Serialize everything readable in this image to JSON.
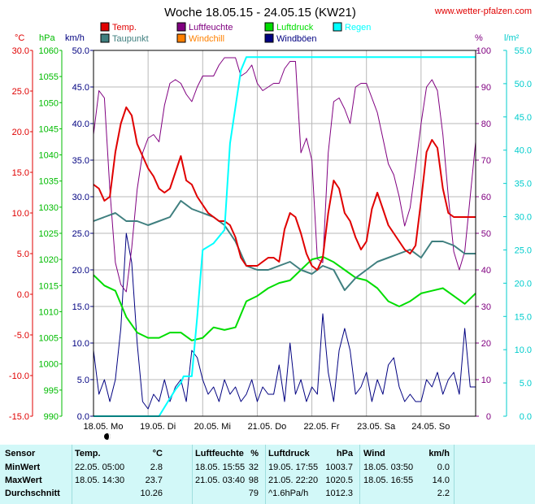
{
  "title": "Woche 18.05.15 - 24.05.15 (KW21)",
  "site": "www.wetter-pfalzen.com",
  "colors": {
    "background": "#ffffff",
    "plot_background": "#ffffff",
    "temp": "#e00000",
    "taupunkt": "#3f7f7f",
    "luftfeuchte": "#800080",
    "windchill": "#ff8000",
    "luftdruck": "#00dd00",
    "windboeen": "#000080",
    "regen": "#00ffff",
    "axis_temp": "#e00000",
    "axis_hpa": "#00bb00",
    "axis_kmh": "#000080",
    "axis_pct": "#800080",
    "axis_rain": "#00cccc",
    "stats_bg": "#d2f8f8"
  },
  "legend": [
    {
      "label": "Temp.",
      "color": "#e00000"
    },
    {
      "label": "Luftfeuchte",
      "color": "#800080"
    },
    {
      "label": "Luftdruck",
      "color": "#00dd00"
    },
    {
      "label": "Regen",
      "color": "#00ffff"
    },
    {
      "label": "Taupunkt",
      "color": "#3f7f7f"
    },
    {
      "label": "Windchill",
      "color": "#ff8000"
    },
    {
      "label": "Windböen",
      "color": "#000080"
    }
  ],
  "chart_data": {
    "type": "line",
    "title": "Woche 18.05.15 - 24.05.15 (KW21)",
    "grid": true,
    "x_labels": [
      "18.05. Mo",
      "19.05. Di",
      "20.05. Mi",
      "21.05. Do",
      "22.05. Fr",
      "23.05. Sa",
      "24.05. So"
    ],
    "x_range": [
      0,
      7
    ],
    "axes": {
      "temp": {
        "unit": "°C",
        "ticks": [
          "30.0",
          "25.0",
          "20.0",
          "15.0",
          "10.0",
          "5.0",
          "0.0",
          "-5.0",
          "-10.0",
          "-15.0"
        ],
        "range": [
          -15,
          30
        ]
      },
      "pressure": {
        "unit": "hPa",
        "ticks": [
          "1060",
          "1055",
          "1050",
          "1045",
          "1040",
          "1035",
          "1030",
          "1025",
          "1020",
          "1015",
          "1010",
          "1005",
          "1000",
          "995",
          "990"
        ],
        "range": [
          990,
          1060
        ]
      },
      "wind": {
        "unit": "km/h",
        "ticks": [
          "50.0",
          "45.0",
          "40.0",
          "35.0",
          "30.0",
          "25.0",
          "20.0",
          "15.0",
          "10.0",
          "5.0",
          "0.0"
        ],
        "range": [
          0,
          50
        ]
      },
      "humidity": {
        "unit": "%",
        "ticks": [
          "100",
          "90",
          "80",
          "70",
          "60",
          "50",
          "40",
          "30",
          "20",
          "10",
          "0"
        ],
        "range": [
          0,
          100
        ]
      },
      "rain": {
        "unit": "l/m²",
        "ticks": [
          "55.0",
          "50.0",
          "45.0",
          "40.0",
          "35.0",
          "30.0",
          "25.0",
          "20.0",
          "15.0",
          "10.0",
          "5.0",
          "0.0"
        ],
        "range": [
          0,
          55
        ]
      }
    },
    "series": [
      {
        "name": "Temp.",
        "axis": "temp",
        "x": [
          0,
          0.1,
          0.2,
          0.3,
          0.4,
          0.5,
          0.6,
          0.7,
          0.8,
          0.9,
          1.0,
          1.1,
          1.2,
          1.3,
          1.4,
          1.5,
          1.6,
          1.7,
          1.8,
          1.9,
          2.0,
          2.1,
          2.2,
          2.3,
          2.4,
          2.5,
          2.6,
          2.7,
          2.8,
          2.9,
          3.0,
          3.1,
          3.2,
          3.3,
          3.4,
          3.5,
          3.6,
          3.7,
          3.8,
          3.9,
          4.0,
          4.1,
          4.2,
          4.3,
          4.4,
          4.5,
          4.6,
          4.7,
          4.8,
          4.9,
          5.0,
          5.1,
          5.2,
          5.3,
          5.4,
          5.5,
          5.6,
          5.7,
          5.8,
          5.9,
          6.0,
          6.1,
          6.2,
          6.3,
          6.4,
          6.5,
          6.6,
          6.7,
          6.8,
          6.9,
          7.0
        ],
        "y": [
          13.5,
          13.0,
          11.5,
          12.0,
          17.5,
          21.0,
          23.0,
          22.0,
          18.5,
          17.0,
          15.5,
          14.5,
          13.0,
          12.5,
          13.0,
          15.0,
          17.0,
          14.0,
          13.5,
          12.0,
          11.0,
          10.0,
          9.5,
          9.0,
          9.0,
          8.5,
          7.0,
          4.5,
          3.5,
          3.5,
          3.5,
          4.0,
          4.5,
          4.5,
          4.0,
          8.0,
          10.0,
          9.5,
          7.5,
          5.0,
          3.5,
          3.0,
          4.5,
          10.0,
          14.0,
          13.0,
          10.0,
          9.0,
          7.0,
          5.5,
          6.5,
          10.5,
          12.5,
          10.5,
          8.5,
          7.5,
          6.5,
          5.5,
          5.0,
          6.0,
          11.5,
          17.5,
          19.0,
          18.0,
          13.0,
          10.0,
          9.5,
          9.5,
          9.5,
          9.5,
          9.5
        ]
      },
      {
        "name": "Taupunkt",
        "axis": "temp",
        "x": [
          0,
          0.2,
          0.4,
          0.6,
          0.8,
          1.0,
          1.2,
          1.4,
          1.6,
          1.8,
          2.0,
          2.2,
          2.4,
          2.6,
          2.8,
          3.0,
          3.2,
          3.4,
          3.6,
          3.8,
          4.0,
          4.2,
          4.4,
          4.6,
          4.8,
          5.0,
          5.2,
          5.4,
          5.6,
          5.8,
          6.0,
          6.2,
          6.4,
          6.6,
          6.8,
          7.0
        ],
        "y": [
          9.0,
          9.5,
          10.0,
          9.0,
          9.0,
          8.5,
          9.0,
          9.5,
          11.5,
          10.5,
          10.0,
          9.5,
          8.5,
          6.5,
          3.5,
          3.0,
          3.0,
          3.5,
          4.0,
          3.0,
          2.5,
          3.5,
          3.0,
          0.5,
          2.0,
          3.0,
          4.0,
          4.5,
          5.0,
          5.5,
          4.5,
          6.5,
          6.5,
          6.0,
          5.0,
          5.0
        ]
      },
      {
        "name": "Luftfeuchte",
        "axis": "humidity",
        "x": [
          0,
          0.1,
          0.2,
          0.3,
          0.4,
          0.5,
          0.6,
          0.7,
          0.8,
          0.9,
          1.0,
          1.1,
          1.2,
          1.3,
          1.4,
          1.5,
          1.6,
          1.7,
          1.8,
          1.9,
          2.0,
          2.1,
          2.2,
          2.3,
          2.4,
          2.5,
          2.6,
          2.7,
          2.8,
          2.9,
          3.0,
          3.1,
          3.2,
          3.3,
          3.4,
          3.5,
          3.6,
          3.7,
          3.8,
          3.9,
          4.0,
          4.1,
          4.2,
          4.3,
          4.4,
          4.5,
          4.6,
          4.7,
          4.8,
          4.9,
          5.0,
          5.1,
          5.2,
          5.3,
          5.4,
          5.5,
          5.6,
          5.7,
          5.8,
          5.9,
          6.0,
          6.1,
          6.2,
          6.3,
          6.4,
          6.5,
          6.6,
          6.7,
          6.8,
          6.9,
          7.0
        ],
        "y": [
          77,
          89,
          87,
          62,
          42,
          36,
          34,
          46,
          62,
          72,
          76,
          77,
          75,
          85,
          91,
          92,
          91,
          88,
          86,
          90,
          93,
          93,
          93,
          96,
          98,
          98,
          98,
          93,
          94,
          96,
          91,
          89,
          90,
          91,
          91,
          95,
          97,
          97,
          72,
          76,
          70,
          43,
          42,
          72,
          86,
          87,
          84,
          80,
          90,
          91,
          91,
          87,
          83,
          76,
          69,
          66,
          60,
          52,
          57,
          68,
          80,
          90,
          92,
          89,
          77,
          60,
          45,
          40,
          45,
          60,
          75
        ]
      },
      {
        "name": "Luftdruck",
        "axis": "pressure",
        "x": [
          0,
          0.2,
          0.4,
          0.6,
          0.8,
          1.0,
          1.2,
          1.4,
          1.6,
          1.8,
          2.0,
          2.2,
          2.4,
          2.6,
          2.8,
          3.0,
          3.2,
          3.4,
          3.6,
          3.8,
          4.0,
          4.2,
          4.4,
          4.6,
          4.8,
          5.0,
          5.2,
          5.4,
          5.6,
          5.8,
          6.0,
          6.2,
          6.4,
          6.6,
          6.8,
          7.0
        ],
        "y": [
          1017,
          1015,
          1014,
          1009,
          1006,
          1005,
          1005,
          1006,
          1006,
          1004.5,
          1005,
          1007,
          1006.5,
          1007,
          1012,
          1013,
          1014.5,
          1015.5,
          1016,
          1018,
          1020,
          1020.5,
          1019.5,
          1018,
          1016.5,
          1016,
          1014.5,
          1012,
          1011,
          1012,
          1013.5,
          1014,
          1014.5,
          1013,
          1011.5,
          1013.5
        ]
      },
      {
        "name": "Windböen",
        "axis": "wind",
        "x": [
          0,
          0.1,
          0.2,
          0.3,
          0.4,
          0.5,
          0.6,
          0.7,
          0.8,
          0.9,
          1.0,
          1.1,
          1.2,
          1.3,
          1.4,
          1.5,
          1.6,
          1.7,
          1.8,
          1.9,
          2.0,
          2.1,
          2.2,
          2.3,
          2.4,
          2.5,
          2.6,
          2.7,
          2.8,
          2.9,
          3.0,
          3.1,
          3.2,
          3.3,
          3.4,
          3.5,
          3.6,
          3.7,
          3.8,
          3.9,
          4.0,
          4.1,
          4.2,
          4.3,
          4.4,
          4.5,
          4.6,
          4.7,
          4.8,
          4.9,
          5.0,
          5.1,
          5.2,
          5.3,
          5.4,
          5.5,
          5.6,
          5.7,
          5.8,
          5.9,
          6.0,
          6.1,
          6.2,
          6.3,
          6.4,
          6.5,
          6.6,
          6.7,
          6.8,
          6.9,
          7.0
        ],
        "y": [
          9,
          3,
          5,
          2,
          5,
          12,
          25,
          21,
          10,
          2,
          1,
          3,
          2,
          5,
          2,
          4,
          5,
          2,
          9,
          8,
          5,
          3,
          4,
          2,
          5,
          3,
          4,
          2,
          3,
          5,
          2,
          4,
          3,
          3,
          7,
          2,
          10,
          3,
          5,
          2,
          4,
          3,
          14,
          6,
          2,
          9,
          12,
          9,
          3,
          4,
          6,
          2,
          5,
          3,
          7,
          8,
          4,
          2,
          3,
          2,
          2,
          5,
          4,
          6,
          3,
          5,
          6,
          3,
          12,
          4,
          4
        ]
      },
      {
        "name": "Regen",
        "axis": "rain",
        "x": [
          0,
          1.2,
          1.35,
          1.5,
          1.6,
          1.65,
          1.8,
          1.9,
          1.95,
          2.0,
          2.2,
          2.4,
          2.5,
          2.7,
          2.8,
          2.9,
          3.0,
          4.0,
          5.0,
          6.0,
          7.0
        ],
        "y": [
          0,
          0,
          2,
          4,
          5,
          6,
          6,
          15,
          20,
          25,
          26,
          28,
          41,
          52,
          54,
          54,
          54,
          54,
          54,
          54,
          54
        ]
      }
    ]
  },
  "stats": {
    "headers": [
      {
        "label": "Sensor",
        "unit": ""
      },
      {
        "label": "Temp.",
        "unit": "°C"
      },
      {
        "label": "Luftfeuchte",
        "unit": "%"
      },
      {
        "label": "Luftdruck",
        "unit": "hPa"
      },
      {
        "label": "Wind",
        "unit": "km/h"
      }
    ],
    "rows": [
      {
        "label": "MinWert",
        "temp_time": "22.05.  05:00",
        "temp_val": "2.8",
        "hum_time": "18.05.  15:55",
        "hum_val": "32",
        "press_time": "19.05.  17:55",
        "press_val": "1003.7",
        "wind_time": "18.05.  03:50",
        "wind_val": "0.0"
      },
      {
        "label": "MaxWert",
        "temp_time": "18.05.  14:30",
        "temp_val": "23.7",
        "hum_time": "21.05.  03:40",
        "hum_val": "98",
        "press_time": "21.05.  22:20",
        "press_val": "1020.5",
        "wind_time": "18.05.  16:55",
        "wind_val": "14.0"
      },
      {
        "label": "Durchschnitt",
        "temp_time": "",
        "temp_val": "10.26",
        "hum_time": "",
        "hum_val": "79",
        "press_time": "^1.6hPa/h",
        "press_val": "1012.3",
        "wind_time": "",
        "wind_val": "2.2"
      }
    ]
  }
}
